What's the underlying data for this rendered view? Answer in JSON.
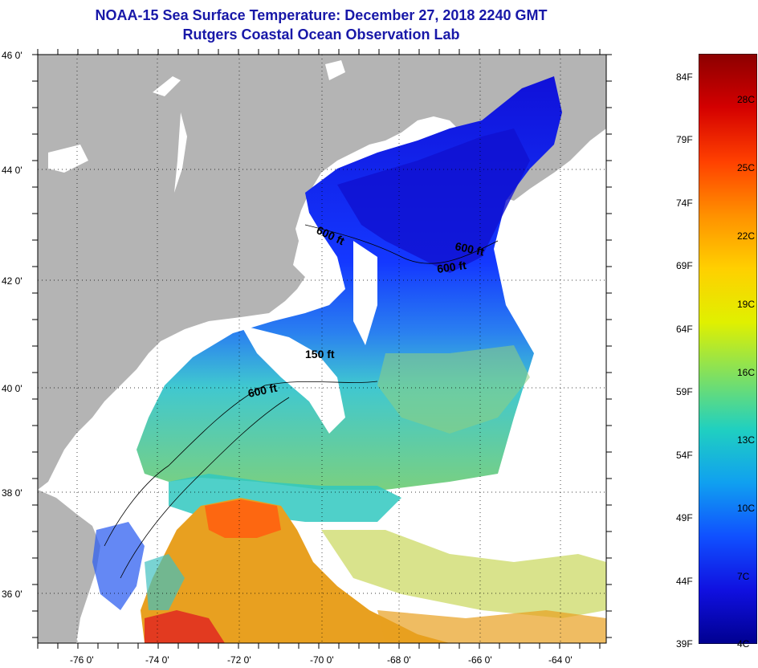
{
  "title": "NOAA-15 Sea Surface Temperature:  December 27, 2018 2240 GMT",
  "subtitle": "Rutgers Coastal Ocean Observation Lab",
  "y_ticks": [
    "46 0'",
    "44 0'",
    "42 0'",
    "40 0'",
    "38 0'",
    "36 0'"
  ],
  "x_ticks": [
    "-76 0'",
    "-74 0'",
    "-72 0'",
    "-70 0'",
    "-68 0'",
    "-66 0'",
    "-64 0'"
  ],
  "contour_labels": [
    "600 ft",
    "600 ft",
    "600 ft",
    "150 ft",
    "600 ft"
  ],
  "colorbar": {
    "f_labels": [
      "84F",
      "79F",
      "74F",
      "69F",
      "64F",
      "59F",
      "54F",
      "49F",
      "44F",
      "39F"
    ],
    "c_labels": [
      "28C",
      "25C",
      "22C",
      "19C",
      "16C",
      "13C",
      "10C",
      "7C",
      "4C"
    ],
    "colors": [
      "#8b0000",
      "#d40000",
      "#ff4000",
      "#ff9000",
      "#ffd000",
      "#e0f000",
      "#80e060",
      "#20d0c0",
      "#10a0f0",
      "#1050ff",
      "#1010e0",
      "#000090"
    ]
  },
  "colors": {
    "land": "#b4b4b4",
    "cloud": "#ffffff",
    "title": "#1818a8"
  }
}
